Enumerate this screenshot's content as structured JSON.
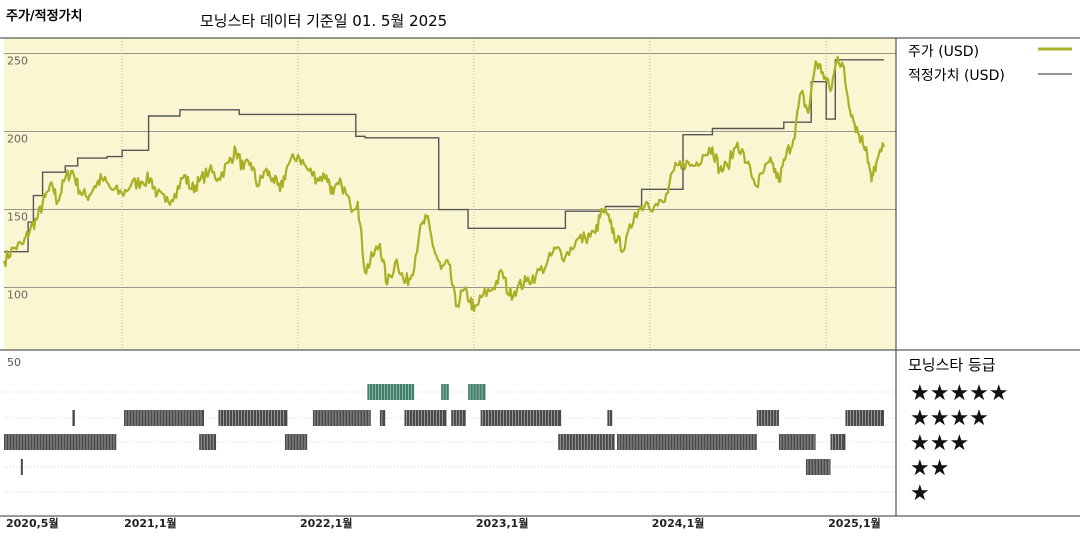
{
  "header": {
    "title": "주가/적정가치",
    "subtitle": "모닝스타 데이터 기준일 01. 5월 2025"
  },
  "legend": {
    "price_label": "주가 (USD)",
    "fair_label": "적정가치 (USD)",
    "rating_title": "모닝스타 등급"
  },
  "colors": {
    "price_line": "#a9b026",
    "fair_line": "#555555",
    "plot_bg": "#faf6d2",
    "rating_bar": "#4a4a4a",
    "rating5_bar": "#3f7e6a"
  },
  "chart_data": {
    "type": "line",
    "x_range": [
      "2020-05-01",
      "2025-05-01"
    ],
    "x_ticks": [
      {
        "date": "2020-05-01",
        "label": "2020,5월"
      },
      {
        "date": "2021-01-01",
        "label": "2021,1월"
      },
      {
        "date": "2022-01-01",
        "label": "2022,1월"
      },
      {
        "date": "2023-01-01",
        "label": "2023,1월"
      },
      {
        "date": "2024-01-01",
        "label": "2024,1월"
      },
      {
        "date": "2025-01-01",
        "label": "2025,1월"
      }
    ],
    "y_range": [
      60,
      260
    ],
    "y_ticks": [
      {
        "value": 100,
        "label": "100"
      },
      {
        "value": 150,
        "label": "150"
      },
      {
        "value": 200,
        "label": "200"
      },
      {
        "value": 250,
        "label": "250"
      }
    ],
    "series": [
      {
        "name": "주가 (USD)",
        "points": [
          [
            "2020-05-01",
            117
          ],
          [
            "2020-05-20",
            125
          ],
          [
            "2020-06-10",
            128
          ],
          [
            "2020-06-25",
            138
          ],
          [
            "2020-07-10",
            145
          ],
          [
            "2020-07-25",
            158
          ],
          [
            "2020-08-10",
            165
          ],
          [
            "2020-08-20",
            155
          ],
          [
            "2020-09-05",
            170
          ],
          [
            "2020-09-20",
            175
          ],
          [
            "2020-10-05",
            162
          ],
          [
            "2020-10-20",
            158
          ],
          [
            "2020-11-05",
            165
          ],
          [
            "2020-11-20",
            170
          ],
          [
            "2020-12-10",
            163
          ],
          [
            "2021-01-01",
            160
          ],
          [
            "2021-01-20",
            166
          ],
          [
            "2021-02-10",
            168
          ],
          [
            "2021-03-01",
            170
          ],
          [
            "2021-03-15",
            160
          ],
          [
            "2021-04-01",
            155
          ],
          [
            "2021-04-20",
            160
          ],
          [
            "2021-05-10",
            172
          ],
          [
            "2021-05-25",
            163
          ],
          [
            "2021-06-10",
            168
          ],
          [
            "2021-07-01",
            175
          ],
          [
            "2021-07-20",
            170
          ],
          [
            "2021-08-10",
            180
          ],
          [
            "2021-08-25",
            188
          ],
          [
            "2021-09-10",
            176
          ],
          [
            "2021-09-25",
            180
          ],
          [
            "2021-10-10",
            165
          ],
          [
            "2021-10-25",
            175
          ],
          [
            "2021-11-10",
            170
          ],
          [
            "2021-11-25",
            162
          ],
          [
            "2021-12-10",
            178
          ],
          [
            "2022-01-01",
            185
          ],
          [
            "2022-01-20",
            176
          ],
          [
            "2022-02-10",
            170
          ],
          [
            "2022-03-01",
            172
          ],
          [
            "2022-03-15",
            160
          ],
          [
            "2022-04-01",
            167
          ],
          [
            "2022-04-20",
            152
          ],
          [
            "2022-05-05",
            155
          ],
          [
            "2022-05-20",
            110
          ],
          [
            "2022-06-05",
            120
          ],
          [
            "2022-06-20",
            128
          ],
          [
            "2022-07-05",
            102
          ],
          [
            "2022-07-25",
            118
          ],
          [
            "2022-08-10",
            103
          ],
          [
            "2022-08-25",
            108
          ],
          [
            "2022-09-10",
            135
          ],
          [
            "2022-09-25",
            145
          ],
          [
            "2022-10-10",
            125
          ],
          [
            "2022-10-25",
            112
          ],
          [
            "2022-11-10",
            115
          ],
          [
            "2022-11-25",
            88
          ],
          [
            "2022-12-10",
            98
          ],
          [
            "2022-12-25",
            92
          ],
          [
            "2023-01-01",
            85
          ],
          [
            "2023-01-20",
            95
          ],
          [
            "2023-02-10",
            100
          ],
          [
            "2023-03-01",
            110
          ],
          [
            "2023-03-15",
            95
          ],
          [
            "2023-04-01",
            100
          ],
          [
            "2023-04-20",
            104
          ],
          [
            "2023-05-10",
            108
          ],
          [
            "2023-06-01",
            115
          ],
          [
            "2023-06-20",
            125
          ],
          [
            "2023-07-10",
            120
          ],
          [
            "2023-08-01",
            130
          ],
          [
            "2023-08-20",
            132
          ],
          [
            "2023-09-10",
            135
          ],
          [
            "2023-09-25",
            150
          ],
          [
            "2023-10-10",
            142
          ],
          [
            "2023-10-25",
            130
          ],
          [
            "2023-11-10",
            125
          ],
          [
            "2023-12-01",
            148
          ],
          [
            "2023-12-25",
            155
          ],
          [
            "2024-01-10",
            152
          ],
          [
            "2024-02-01",
            155
          ],
          [
            "2024-02-20",
            175
          ],
          [
            "2024-03-10",
            180
          ],
          [
            "2024-04-01",
            178
          ],
          [
            "2024-04-20",
            185
          ],
          [
            "2024-05-10",
            190
          ],
          [
            "2024-05-25",
            175
          ],
          [
            "2024-06-10",
            178
          ],
          [
            "2024-07-01",
            193
          ],
          [
            "2024-07-20",
            180
          ],
          [
            "2024-08-10",
            165
          ],
          [
            "2024-08-25",
            175
          ],
          [
            "2024-09-10",
            180
          ],
          [
            "2024-09-25",
            168
          ],
          [
            "2024-10-10",
            185
          ],
          [
            "2024-10-25",
            195
          ],
          [
            "2024-11-10",
            225
          ],
          [
            "2024-11-25",
            212
          ],
          [
            "2024-12-10",
            245
          ],
          [
            "2024-12-25",
            238
          ],
          [
            "2025-01-10",
            226
          ],
          [
            "2025-01-25",
            248
          ],
          [
            "2025-02-05",
            242
          ],
          [
            "2025-02-15",
            222
          ],
          [
            "2025-03-01",
            205
          ],
          [
            "2025-03-15",
            195
          ],
          [
            "2025-03-25",
            190
          ],
          [
            "2025-04-05",
            168
          ],
          [
            "2025-04-15",
            180
          ],
          [
            "2025-05-01",
            190
          ]
        ]
      },
      {
        "name": "적정가치 (USD)",
        "step_points": [
          [
            "2020-05-01",
            123
          ],
          [
            "2020-06-20",
            142
          ],
          [
            "2020-07-01",
            159
          ],
          [
            "2020-07-20",
            174
          ],
          [
            "2020-09-05",
            178
          ],
          [
            "2020-10-01",
            183
          ],
          [
            "2020-12-01",
            184
          ],
          [
            "2021-01-01",
            188
          ],
          [
            "2021-02-25",
            210
          ],
          [
            "2021-05-01",
            214
          ],
          [
            "2021-09-01",
            211
          ],
          [
            "2022-05-01",
            197
          ],
          [
            "2022-05-20",
            196
          ],
          [
            "2022-10-20",
            150
          ],
          [
            "2022-12-20",
            138
          ],
          [
            "2023-07-01",
            138
          ],
          [
            "2023-07-10",
            149
          ],
          [
            "2023-10-01",
            152
          ],
          [
            "2023-12-15",
            163
          ],
          [
            "2024-03-10",
            198
          ],
          [
            "2024-05-10",
            202
          ],
          [
            "2024-10-05",
            206
          ],
          [
            "2024-12-01",
            232
          ],
          [
            "2025-01-01",
            208
          ],
          [
            "2025-01-20",
            246
          ],
          [
            "2025-05-01",
            246
          ]
        ]
      }
    ],
    "rating_panel": {
      "title": "모닝스타 등급",
      "axis_label": "50",
      "levels": [
        5,
        4,
        3,
        2,
        1
      ],
      "level_labels": [
        "★★★★★",
        "★★★★",
        "★★★",
        "★★",
        "★"
      ],
      "segments": [
        {
          "stars": 3,
          "start": "2020-05-01",
          "end": "2020-12-20"
        },
        {
          "stars": 4,
          "start": "2020-09-20",
          "end": "2020-09-25"
        },
        {
          "stars": 2,
          "start": "2020-06-05",
          "end": "2020-06-08"
        },
        {
          "stars": 4,
          "start": "2021-01-05",
          "end": "2021-06-20"
        },
        {
          "stars": 3,
          "start": "2021-06-10",
          "end": "2021-07-15"
        },
        {
          "stars": 4,
          "start": "2021-07-20",
          "end": "2021-12-10"
        },
        {
          "stars": 3,
          "start": "2021-12-05",
          "end": "2022-01-20"
        },
        {
          "stars": 4,
          "start": "2022-02-01",
          "end": "2022-06-01"
        },
        {
          "stars": 5,
          "start": "2022-05-25",
          "end": "2022-08-30"
        },
        {
          "stars": 4,
          "start": "2022-06-20",
          "end": "2022-07-01"
        },
        {
          "stars": 4,
          "start": "2022-08-10",
          "end": "2022-11-05"
        },
        {
          "stars": 5,
          "start": "2022-10-25",
          "end": "2022-11-10"
        },
        {
          "stars": 4,
          "start": "2022-11-15",
          "end": "2022-12-15"
        },
        {
          "stars": 5,
          "start": "2022-12-20",
          "end": "2023-01-25"
        },
        {
          "stars": 4,
          "start": "2023-01-15",
          "end": "2023-07-01"
        },
        {
          "stars": 3,
          "start": "2023-06-25",
          "end": "2023-10-20"
        },
        {
          "stars": 4,
          "start": "2023-10-05",
          "end": "2023-10-15"
        },
        {
          "stars": 3,
          "start": "2023-10-25",
          "end": "2024-08-10"
        },
        {
          "stars": 4,
          "start": "2024-08-10",
          "end": "2024-09-25"
        },
        {
          "stars": 3,
          "start": "2024-09-25",
          "end": "2024-12-10"
        },
        {
          "stars": 2,
          "start": "2024-11-20",
          "end": "2025-01-10"
        },
        {
          "stars": 3,
          "start": "2025-01-10",
          "end": "2025-02-10"
        },
        {
          "stars": 4,
          "start": "2025-02-10",
          "end": "2025-05-01"
        }
      ]
    }
  }
}
